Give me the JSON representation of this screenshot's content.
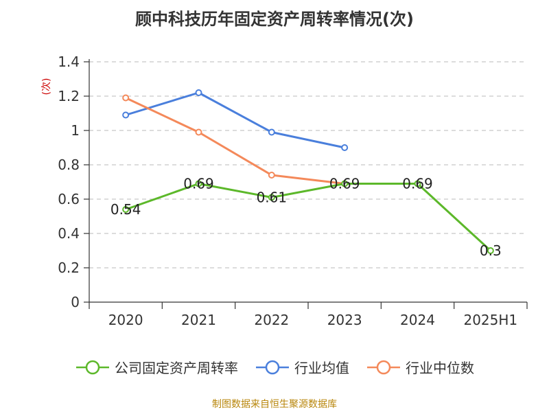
{
  "title": "顾中科技历年固定资产周转率情况(次)",
  "source": "制图数据来自恒生聚源数据库",
  "chart_data": {
    "type": "line",
    "title": "顾中科技历年固定资产周转率情况(次)",
    "ylabel": "(次)",
    "xlabel": "",
    "categories": [
      "2020",
      "2021",
      "2022",
      "2023",
      "2024",
      "2025H1"
    ],
    "ylim": [
      0,
      1.4
    ],
    "yticks": [
      "0",
      "0.2",
      "0.4",
      "0.6",
      "0.8",
      "1",
      "1.2",
      "1.4"
    ],
    "grid": true,
    "legend_position": "bottom",
    "series": [
      {
        "name": "公司固定资产周转率",
        "color": "#5cb82a",
        "values": [
          0.54,
          0.69,
          0.61,
          0.69,
          0.69,
          0.3
        ],
        "labels": [
          "0.54",
          "0.69",
          "0.61",
          "0.69",
          "0.69",
          "0.3"
        ]
      },
      {
        "name": "行业均值",
        "color": "#4a7fdc",
        "values": [
          1.09,
          1.22,
          0.99,
          0.9,
          null,
          null
        ]
      },
      {
        "name": "行业中位数",
        "color": "#f4895a",
        "values": [
          1.19,
          0.99,
          0.74,
          0.69,
          null,
          null
        ]
      }
    ]
  }
}
